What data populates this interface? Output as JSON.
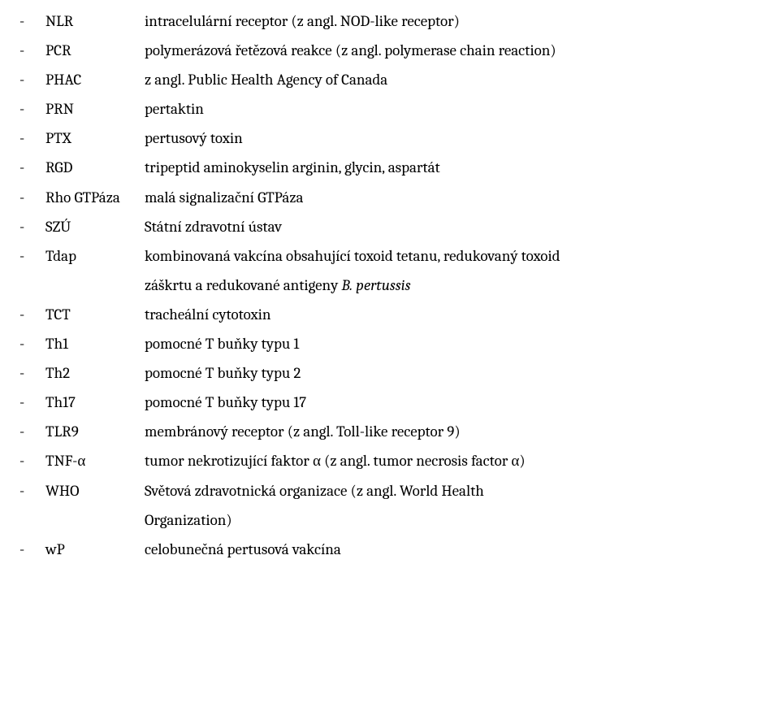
{
  "font_family": "Cambria, Georgia, serif",
  "font_size_pt": 14,
  "text_color": "#000000",
  "background_color": "#ffffff",
  "dash_char": "-",
  "entries": [
    {
      "abbr": "NLR",
      "def": "intracelulární receptor (z angl. NOD-like receptor)"
    },
    {
      "abbr": "PCR",
      "def": "polymerázová řetězová reakce (z angl. polymerase chain reaction)"
    },
    {
      "abbr": "PHAC",
      "def": "z angl. Public Health Agency of Canada"
    },
    {
      "abbr": "PRN",
      "def": "pertaktin"
    },
    {
      "abbr": "PTX",
      "def": "pertusový toxin"
    },
    {
      "abbr": "RGD",
      "def": "tripeptid aminokyselin arginin, glycin, aspartát"
    },
    {
      "abbr": "Rho GTPáza",
      "def": "malá signalizační GTPáza"
    },
    {
      "abbr": "SZÚ",
      "def": "Státní zdravotní ústav"
    },
    {
      "abbr": "Tdap",
      "def": "kombinovaná vakcína obsahující toxoid tetanu, redukovaný toxoid",
      "cont": "záškrtu a redukované antigeny ",
      "cont_italic": "B. pertussis"
    },
    {
      "abbr": "TCT",
      "def": "tracheální cytotoxin"
    },
    {
      "abbr": "Th1",
      "def": "pomocné T buňky typu 1"
    },
    {
      "abbr": "Th2",
      "def": "pomocné T buňky typu 2"
    },
    {
      "abbr": "Th17",
      "def": "pomocné T buňky typu 17"
    },
    {
      "abbr": "TLR9",
      "def": "membránový receptor (z angl. Toll-like receptor 9)"
    },
    {
      "abbr": "TNF-α",
      "def": "tumor nekrotizující faktor α (z angl. tumor necrosis factor α)"
    },
    {
      "abbr": "WHO",
      "def": "Světová zdravotnická organizace (z angl. World Health",
      "cont": "Organization)"
    },
    {
      "abbr": "wP",
      "def": "celobunečná pertusová vakcína"
    }
  ]
}
